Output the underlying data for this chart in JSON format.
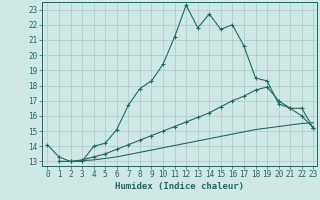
{
  "xlabel": "Humidex (Indice chaleur)",
  "bg_color": "#cfe8e5",
  "grid_color": "#aed0cc",
  "line_color": "#1e6b5e",
  "x_min": -0.5,
  "x_max": 23.3,
  "y_min": 12.7,
  "y_max": 23.5,
  "line1_x": [
    0,
    1,
    2,
    3,
    4,
    5,
    6,
    7,
    8,
    9,
    10,
    11,
    12,
    13,
    14,
    15,
    16,
    17,
    18,
    19,
    20,
    21,
    22,
    23
  ],
  "line1_y": [
    14.1,
    13.3,
    13.0,
    13.0,
    14.0,
    14.2,
    15.1,
    16.7,
    17.8,
    18.3,
    19.4,
    21.2,
    23.3,
    21.8,
    22.7,
    21.7,
    22.0,
    20.6,
    18.5,
    18.3,
    16.8,
    16.5,
    16.0,
    15.2
  ],
  "line2_x": [
    1,
    2,
    3,
    4,
    5,
    6,
    7,
    8,
    9,
    10,
    11,
    12,
    13,
    14,
    15,
    16,
    17,
    18,
    19,
    20,
    21,
    22,
    23
  ],
  "line2_y": [
    13.0,
    13.0,
    13.1,
    13.3,
    13.5,
    13.8,
    14.1,
    14.4,
    14.7,
    15.0,
    15.3,
    15.6,
    15.9,
    16.2,
    16.6,
    17.0,
    17.3,
    17.7,
    17.9,
    17.0,
    16.5,
    16.5,
    15.2
  ],
  "line3_x": [
    1,
    2,
    3,
    4,
    5,
    6,
    7,
    8,
    9,
    10,
    11,
    12,
    13,
    14,
    15,
    16,
    17,
    18,
    19,
    20,
    21,
    22,
    23
  ],
  "line3_y": [
    13.0,
    13.0,
    13.05,
    13.1,
    13.2,
    13.3,
    13.45,
    13.6,
    13.75,
    13.9,
    14.05,
    14.2,
    14.35,
    14.5,
    14.65,
    14.8,
    14.95,
    15.1,
    15.2,
    15.3,
    15.4,
    15.5,
    15.55
  ],
  "yticks": [
    13,
    14,
    15,
    16,
    17,
    18,
    19,
    20,
    21,
    22,
    23
  ],
  "xticks": [
    0,
    1,
    2,
    3,
    4,
    5,
    6,
    7,
    8,
    9,
    10,
    11,
    12,
    13,
    14,
    15,
    16,
    17,
    18,
    19,
    20,
    21,
    22,
    23
  ],
  "markersize": 2.5
}
